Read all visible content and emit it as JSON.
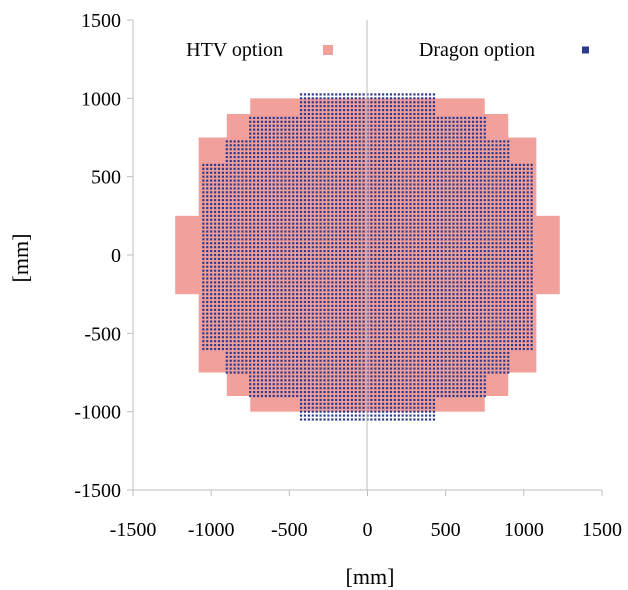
{
  "chart_data": {
    "type": "scatter",
    "title": "",
    "xlabel": "[mm]",
    "ylabel": "[mm]",
    "xlim": [
      -1500,
      1500
    ],
    "ylim": [
      -1500,
      1500
    ],
    "xticks": [
      "-1500",
      "-1000",
      "-500",
      "0",
      "500",
      "1000",
      "1500"
    ],
    "yticks": [
      "1500",
      "1000",
      "500",
      "0",
      "-500",
      "-1000",
      "-1500"
    ],
    "grid": false,
    "legend_position": "top",
    "series": [
      {
        "name": "HTV option",
        "color": "#f2a09c",
        "marker": "square",
        "region_rows": [
          {
            "y": [
              900,
              1000
            ],
            "x": [
              -750,
              750
            ]
          },
          {
            "y": [
              750,
              900
            ],
            "x": [
              -900,
              900
            ]
          },
          {
            "y": [
              430,
              750
            ],
            "x": [
              -1080,
              1080
            ]
          },
          {
            "y": [
              250,
              430
            ],
            "x": [
              -1080,
              1080
            ]
          },
          {
            "y": [
              -250,
              250
            ],
            "x": [
              -1230,
              1230
            ]
          },
          {
            "y": [
              -430,
              -250
            ],
            "x": [
              -1080,
              1080
            ]
          },
          {
            "y": [
              -750,
              -430
            ],
            "x": [
              -1080,
              1080
            ]
          },
          {
            "y": [
              -900,
              -750
            ],
            "x": [
              -900,
              900
            ]
          },
          {
            "y": [
              -1000,
              -900
            ],
            "x": [
              -750,
              750
            ]
          }
        ]
      },
      {
        "name": "Dragon option",
        "color": "#2e3a8c",
        "marker": "square",
        "pitch": 25,
        "region_rows": [
          {
            "y": [
              900,
              1050
            ],
            "x": [
              -430,
              430
            ]
          },
          {
            "y": [
              750,
              900
            ],
            "x": [
              -770,
              770
            ]
          },
          {
            "y": [
              600,
              750
            ],
            "x": [
              -920,
              920
            ]
          },
          {
            "y": [
              -600,
              600
            ],
            "x": [
              -1070,
              1070
            ]
          },
          {
            "y": [
              -750,
              -600
            ],
            "x": [
              -920,
              920
            ]
          },
          {
            "y": [
              -900,
              -750
            ],
            "x": [
              -770,
              770
            ]
          },
          {
            "y": [
              -1050,
              -900
            ],
            "x": [
              -430,
              430
            ]
          }
        ]
      }
    ]
  }
}
